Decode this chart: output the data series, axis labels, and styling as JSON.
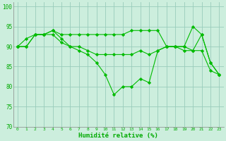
{
  "xlabel": "Humidité relative (%)",
  "background_color": "#cceedd",
  "grid_color": "#99ccbb",
  "line_color": "#00bb00",
  "marker": "D",
  "xlim": [
    -0.5,
    23.5
  ],
  "ylim": [
    70,
    101
  ],
  "yticks": [
    70,
    75,
    80,
    85,
    90,
    95,
    100
  ],
  "xticks": [
    0,
    1,
    2,
    3,
    4,
    5,
    6,
    7,
    8,
    9,
    10,
    11,
    12,
    13,
    14,
    15,
    16,
    17,
    18,
    19,
    20,
    21,
    22,
    23
  ],
  "series": [
    [
      90,
      90,
      93,
      93,
      94,
      93,
      93,
      93,
      93,
      93,
      93,
      93,
      93,
      94,
      94,
      94,
      94,
      90,
      90,
      90,
      95,
      93,
      86,
      83
    ],
    [
      90,
      90,
      93,
      93,
      93,
      91,
      90,
      90,
      89,
      88,
      88,
      88,
      88,
      88,
      89,
      88,
      89,
      90,
      90,
      89,
      89,
      89,
      84,
      83
    ],
    [
      90,
      92,
      93,
      93,
      94,
      92,
      90,
      89,
      88,
      86,
      83,
      78,
      80,
      80,
      82,
      81,
      89,
      90,
      90,
      90,
      89,
      93,
      86,
      83
    ]
  ]
}
